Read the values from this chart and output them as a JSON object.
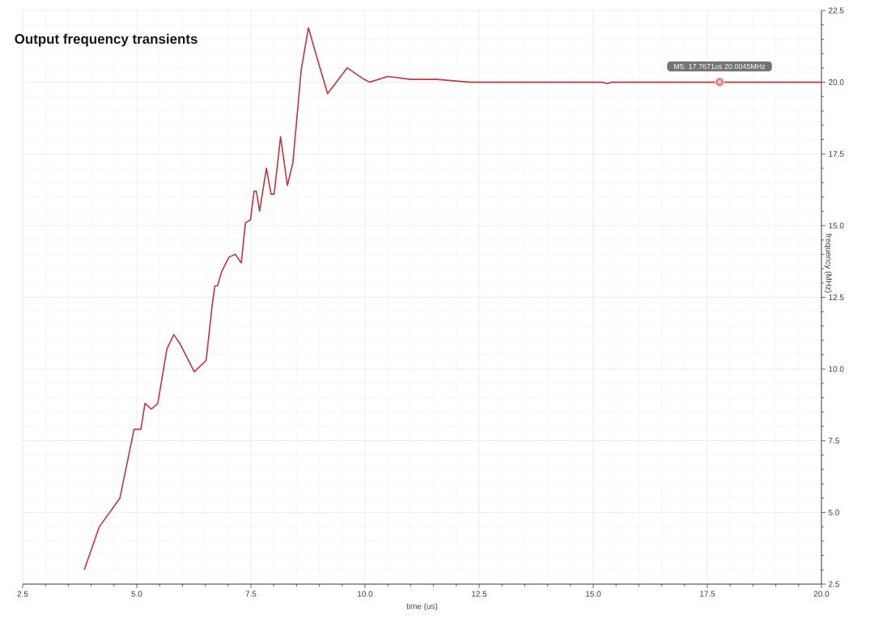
{
  "chart_data": {
    "type": "line",
    "title": "Output frequency transients",
    "xlabel": "time (us)",
    "ylabel": "frequency (MHz)",
    "xlim": [
      2.5,
      20.0
    ],
    "ylim": [
      2.5,
      22.5
    ],
    "xticks": [
      2.5,
      {
        "value": 5.0,
        "label": "5.0"
      },
      7.5,
      {
        "value": 10.0,
        "label": "10.0"
      },
      12.5,
      {
        "value": 15.0,
        "label": "15.0"
      },
      17.5,
      {
        "value": 20.0,
        "label": "20.0"
      }
    ],
    "yticks": [
      2.5,
      {
        "value": 5.0,
        "label": "5.0"
      },
      7.5,
      {
        "value": 10.0,
        "label": "10.0"
      },
      12.5,
      {
        "value": 15.0,
        "label": "15.0"
      },
      17.5,
      {
        "value": 20.0,
        "label": "20.0"
      },
      22.5
    ],
    "grid": true,
    "marker": "none",
    "line_style": "solid",
    "annotations": [
      {
        "text": "M5: 17.7671us 20.0045MHz",
        "x": 17.7671,
        "y": 20.0045
      }
    ],
    "series": [
      {
        "color": "#c0353f",
        "x": [
          3.85,
          4.18,
          4.63,
          4.94,
          5.09,
          5.18,
          5.32,
          5.46,
          5.66,
          5.81,
          5.94,
          6.26,
          6.52,
          6.65,
          6.71,
          6.77,
          6.86,
          7.02,
          7.16,
          7.29,
          7.38,
          7.49,
          7.57,
          7.62,
          7.69,
          7.84,
          7.94,
          8.01,
          8.15,
          8.3,
          8.42,
          8.6,
          8.76,
          8.94,
          9.18,
          9.61,
          9.98,
          10.1,
          10.5,
          11.0,
          11.58,
          12.3,
          13.17,
          15.2,
          15.3,
          15.4,
          20.0
        ],
        "values": [
          3.0,
          4.5,
          5.5,
          7.9,
          7.9,
          8.8,
          8.6,
          8.8,
          10.7,
          11.2,
          10.9,
          9.9,
          10.3,
          12.2,
          12.9,
          12.9,
          13.4,
          13.9,
          14.0,
          13.7,
          15.1,
          15.2,
          16.2,
          16.2,
          15.5,
          17.0,
          16.1,
          16.1,
          18.1,
          16.4,
          17.2,
          20.4,
          21.9,
          20.9,
          19.6,
          20.5,
          20.1,
          20.0,
          20.2,
          20.1,
          20.1,
          20.0,
          20.0,
          20.0,
          19.95,
          20.0,
          20.0
        ]
      }
    ]
  }
}
